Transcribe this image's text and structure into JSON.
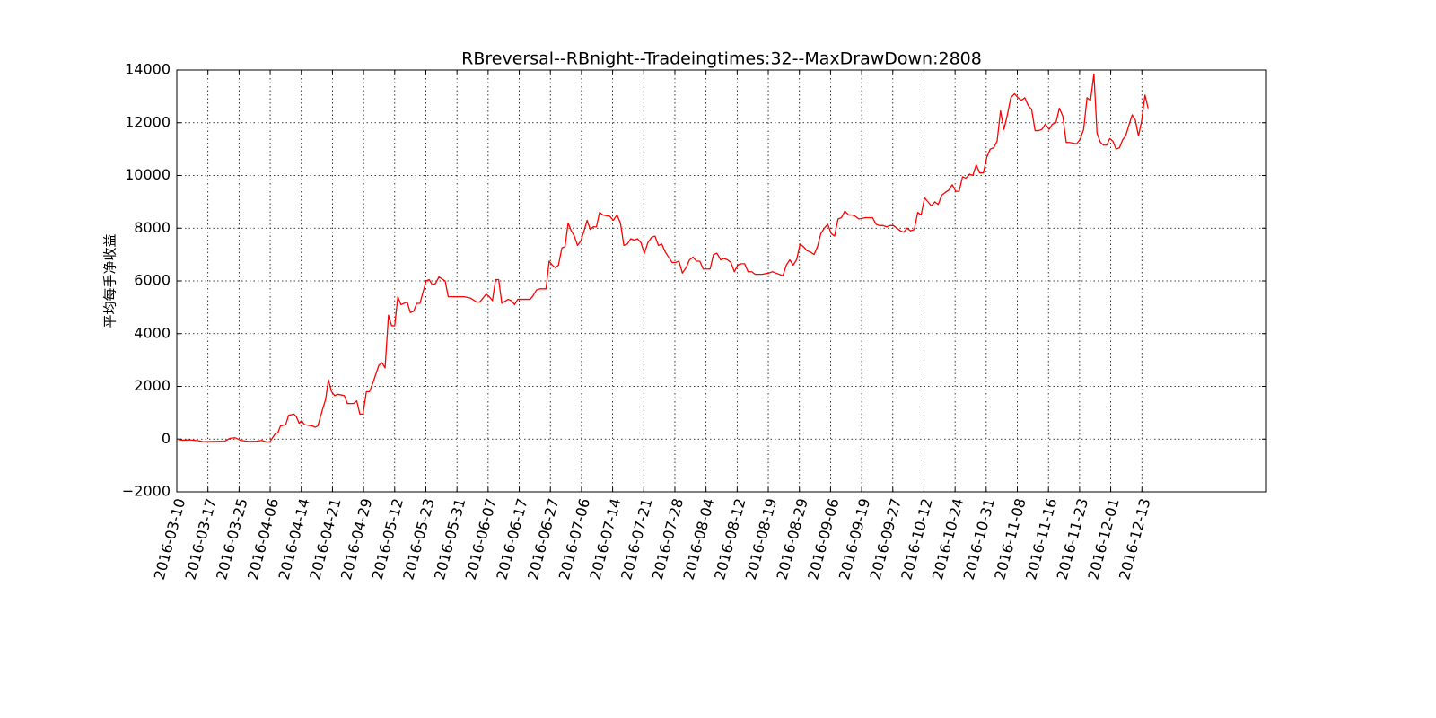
{
  "chart_data": {
    "type": "line",
    "title": "RBreversal--RBnight--Tradeingtimes:32--MaxDrawDown:2808",
    "y_label": "平均每手净收益",
    "color": "#ff0000",
    "grid": true,
    "xlim": [
      0,
      350
    ],
    "ylim": [
      -2000,
      14000
    ],
    "yticks": [
      {
        "value": -2000,
        "label": "−2000"
      },
      0,
      2000,
      4000,
      6000,
      8000,
      10000,
      12000,
      14000
    ],
    "xticks": [
      {
        "value": 0,
        "label": "2016-03-10"
      },
      {
        "value": 10,
        "label": "2016-03-17"
      },
      {
        "value": 20,
        "label": "2016-03-25"
      },
      {
        "value": 30,
        "label": "2016-04-06"
      },
      {
        "value": 40,
        "label": "2016-04-14"
      },
      {
        "value": 50,
        "label": "2016-04-21"
      },
      {
        "value": 60,
        "label": "2016-04-29"
      },
      {
        "value": 70,
        "label": "2016-05-12"
      },
      {
        "value": 80,
        "label": "2016-05-23"
      },
      {
        "value": 90,
        "label": "2016-05-31"
      },
      {
        "value": 100,
        "label": "2016-06-07"
      },
      {
        "value": 110,
        "label": "2016-06-17"
      },
      {
        "value": 120,
        "label": "2016-06-27"
      },
      {
        "value": 130,
        "label": "2016-07-06"
      },
      {
        "value": 140,
        "label": "2016-07-14"
      },
      {
        "value": 150,
        "label": "2016-07-21"
      },
      {
        "value": 160,
        "label": "2016-07-28"
      },
      {
        "value": 170,
        "label": "2016-08-04"
      },
      {
        "value": 180,
        "label": "2016-08-12"
      },
      {
        "value": 190,
        "label": "2016-08-19"
      },
      {
        "value": 200,
        "label": "2016-08-29"
      },
      {
        "value": 210,
        "label": "2016-09-06"
      },
      {
        "value": 220,
        "label": "2016-09-19"
      },
      {
        "value": 230,
        "label": "2016-09-27"
      },
      {
        "value": 240,
        "label": "2016-10-12"
      },
      {
        "value": 250,
        "label": "2016-10-24"
      },
      {
        "value": 260,
        "label": "2016-10-31"
      },
      {
        "value": 270,
        "label": "2016-11-08"
      },
      {
        "value": 280,
        "label": "2016-11-16"
      },
      {
        "value": 290,
        "label": "2016-11-23"
      },
      {
        "value": 300,
        "label": "2016-12-01"
      },
      {
        "value": 310,
        "label": "2016-12-13"
      }
    ],
    "x": [
      0,
      1.7,
      4.3,
      6.8,
      8.5,
      12.0,
      15.4,
      17.1,
      18.8,
      20.5,
      23.1,
      25.6,
      27.3,
      29.0,
      29.9,
      31.6,
      32.5,
      33.3,
      35.0,
      35.9,
      37.6,
      38.4,
      39.3,
      40.1,
      41.0,
      43.6,
      44.4,
      45.3,
      47.0,
      47.8,
      48.7,
      49.7,
      50.7,
      51.7,
      53.8,
      54.8,
      56.8,
      57.8,
      58.8,
      59.8,
      60.9,
      61.9,
      62.9,
      64.9,
      65.9,
      66.9,
      68.0,
      69.0,
      70.0,
      71.0,
      72.0,
      74.0,
      75.0,
      76.1,
      77.1,
      78.1,
      80.1,
      81.1,
      82.1,
      83.1,
      84.2,
      86.2,
      87.2,
      89.2,
      92.3,
      94.3,
      96.3,
      97.3,
      99.4,
      100.4,
      101.4,
      102.4,
      103.4,
      104.4,
      106.4,
      107.5,
      108.5,
      109.5,
      111.5,
      113.5,
      114.5,
      115.5,
      116.6,
      118.6,
      119.6,
      120.6,
      121.6,
      122.6,
      123.7,
      124.7,
      125.7,
      126.7,
      127.7,
      128.7,
      129.7,
      130.7,
      131.8,
      132.8,
      133.8,
      134.8,
      135.8,
      136.9,
      139.1,
      140.2,
      141.4,
      142.5,
      143.6,
      144.7,
      145.8,
      146.9,
      148.0,
      149.1,
      150.2,
      151.3,
      152.5,
      153.6,
      154.7,
      155.8,
      156.9,
      158.0,
      159.1,
      160.2,
      161.3,
      162.4,
      163.6,
      164.7,
      165.8,
      166.9,
      168.0,
      169.1,
      170.2,
      171.3,
      172.4,
      173.5,
      174.7,
      175.8,
      176.9,
      178.0,
      179.1,
      180.2,
      181.3,
      182.4,
      183.5,
      184.7,
      185.8,
      188.0,
      190.2,
      191.3,
      192.4,
      194.7,
      195.8,
      196.9,
      198.0,
      199.1,
      200.2,
      201.3,
      202.4,
      203.5,
      204.7,
      205.8,
      206.9,
      208.0,
      209.1,
      210.2,
      211.3,
      212.4,
      213.5,
      214.6,
      215.8,
      216.9,
      218.0,
      219.1,
      221.3,
      223.5,
      224.6,
      225.7,
      226.9,
      228.0,
      229.1,
      230.2,
      232.4,
      233.5,
      234.6,
      235.7,
      236.9,
      238.0,
      239.1,
      240.2,
      241.3,
      242.4,
      243.5,
      244.6,
      245.7,
      246.8,
      248.0,
      249.1,
      250.2,
      251.3,
      252.4,
      253.5,
      254.6,
      255.7,
      256.8,
      257.9,
      259.1,
      260.2,
      261.3,
      262.4,
      263.5,
      264.6,
      265.7,
      266.8,
      267.9,
      269.1,
      270.2,
      271.3,
      272.4,
      273.5,
      274.6,
      275.7,
      276.8,
      277.9,
      279.0,
      280.2,
      281.3,
      282.4,
      283.5,
      284.6,
      285.7,
      286.8,
      289.0,
      290.1,
      291.3,
      292.4,
      293.5,
      294.6,
      295.6,
      296.7,
      297.7,
      298.7,
      299.7,
      300.7,
      301.7,
      302.8,
      303.8,
      304.8,
      305.8,
      306.9,
      307.9,
      308.9,
      309.9,
      311.0,
      312.0
    ],
    "values": [
      0,
      -40,
      -30,
      -60,
      -100,
      -90,
      -80,
      30,
      50,
      -50,
      -90,
      -80,
      -50,
      -120,
      -100,
      200,
      250,
      500,
      550,
      900,
      950,
      850,
      600,
      700,
      550,
      500,
      450,
      500,
      1200,
      1500,
      2250,
      1800,
      1650,
      1700,
      1650,
      1350,
      1350,
      1450,
      950,
      950,
      1800,
      1800,
      2100,
      2800,
      2900,
      2700,
      4700,
      4300,
      4300,
      5400,
      5100,
      5200,
      4800,
      4850,
      5150,
      5150,
      6000,
      6050,
      5850,
      5900,
      6150,
      6000,
      5400,
      5400,
      5400,
      5350,
      5200,
      5200,
      5500,
      5400,
      5250,
      6050,
      6050,
      5150,
      5300,
      5250,
      5100,
      5300,
      5300,
      5300,
      5450,
      5650,
      5700,
      5700,
      6750,
      6600,
      6500,
      6600,
      7250,
      7300,
      8200,
      7900,
      7700,
      7350,
      7500,
      7850,
      8300,
      7950,
      8050,
      8050,
      8600,
      8500,
      8450,
      8300,
      8500,
      8200,
      7350,
      7400,
      7600,
      7550,
      7600,
      7450,
      7050,
      7450,
      7650,
      7700,
      7350,
      7400,
      7100,
      6900,
      6700,
      6700,
      6750,
      6300,
      6500,
      6800,
      6900,
      6750,
      6750,
      6450,
      6450,
      6450,
      7000,
      7050,
      6800,
      6850,
      6800,
      6700,
      6350,
      6600,
      6650,
      6650,
      6350,
      6350,
      6250,
      6250,
      6300,
      6350,
      6300,
      6200,
      6600,
      6800,
      6600,
      6800,
      7400,
      7300,
      7150,
      7100,
      7000,
      7300,
      7800,
      8000,
      8150,
      7800,
      7700,
      8350,
      8400,
      8650,
      8500,
      8500,
      8450,
      8350,
      8400,
      8400,
      8150,
      8100,
      8100,
      8050,
      8100,
      8100,
      7900,
      7850,
      8000,
      7900,
      7950,
      8600,
      8500,
      9150,
      9000,
      8850,
      9000,
      8900,
      9250,
      9350,
      9450,
      9650,
      9400,
      9400,
      9950,
      9900,
      10050,
      10000,
      10400,
      10100,
      10100,
      10700,
      11000,
      11050,
      11300,
      12450,
      11750,
      12300,
      12950,
      13100,
      12950,
      12850,
      12950,
      12650,
      12500,
      11700,
      11700,
      11750,
      11950,
      11750,
      11950,
      12000,
      12550,
      12250,
      11250,
      11250,
      11200,
      11350,
      11750,
      12950,
      12850,
      13850,
      11600,
      11250,
      11150,
      11150,
      11400,
      11300,
      11000,
      11050,
      11350,
      11500,
      11900,
      12300,
      12100,
      11500,
      12050,
      13050,
      12550
    ]
  }
}
